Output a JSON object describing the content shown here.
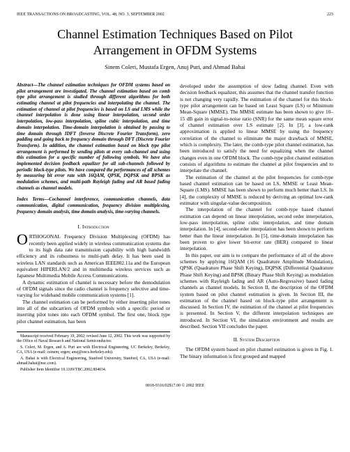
{
  "header": {
    "journal": "IEEE TRANSACTIONS ON BROADCASTING, VOL. 48, NO. 3, SEPTEMBER 2002",
    "page_number": "223"
  },
  "title": {
    "line1": "Channel Estimation Techniques Based on Pilot",
    "line2": "Arrangement in OFDM Systems"
  },
  "authors": "Sinem Coleri, Mustafa Ergen, Anuj Puri, and Ahmad Bahai",
  "abstract": {
    "label": "Abstract—",
    "text": "The channel estimation techniques for OFDM systems based on pilot arrangement are investigated. The channel estimation based on comb type pilot arrangement is studied through different algorithms for both estimating channel at pilot frequencies and interpolating the channel. The estimation of channel at pilot frequencies is based on LS and LMS while the channel interpolation is done using linear interpolation, second order interpolation, low-pass interpolation, spline cubic interpolation, and time domain interpolation. Time-domain interpolation is obtained by passing to time domain through IDFT (Inverse Discrete Fourier Transform), zero padding and going back to frequency domain through DFT (Discrete Fourier Transform). In addition, the channel estimation based on block type pilot arrangement is performed by sending pilots at every sub-channel and using this estimation for a specific number of following symbols. We have also implemented decision feedback equalizer for all sub-channels followed by periodic block-type pilots. We have compared the performances of all schemes by measuring bit error rate with 16QAM, QPSK, DQPSK and BPSK as modulation schemes, and multi-path Rayleigh fading and AR based fading channels as channel models."
  },
  "index_terms": {
    "label": "Index Terms—",
    "text": "Cochannel interference, communication channels, data communication, digital communication, frequency division multiplexing, frequency domain analysis, time domain analysis, time-varying channels."
  },
  "sections": {
    "intro_heading_roman": "I.  ",
    "intro_heading_text": "Introduction",
    "intro_dropcap": "O",
    "intro_first_rest": "RTHOGONAL Frequency Division Multiplexing (OFDM) has recently been applied widely in wireless communication systems due to its high data rate transmission capability with high bandwidth efficiency and its robustness to multi-path delay. It has been used in wireless LAN standards such as American IEEE802.11a and the European equivalent HIPERLAN/2 and in multimedia wireless services such as Japanese Multimedia Mobile Access Communications.",
    "intro_p2": "A dynamic estimation of channel is necessary before the demodulation of OFDM signals since the radio channel is frequency selective and time-varying for wideband mobile communication systems [1].",
    "intro_p3": "The channel estimation can be performed by either inserting pilot tones into all of the subcarriers of OFDM symbols with a specific period or inserting pilot tones into each OFDM symbol. The first one, block type pilot channel estimation, has been",
    "col2_p1": "developed under the assumption of slow fading channel. Even with decision feedback equalizer, this assumes that the channel transfer function is not changing very rapidly. The estimation of the channel for this block-type pilot arrangement can be based on Least Square (LS) or Minimum Mean-Square (MMSE). The MMSE estimate has been shown to give 10–15 dB gain in signal-to-noise ratio (SNR) for the same mean square error of channel estimation over LS estimate [2]. In [3], a low-rank approximation is applied to linear MMSE by using the frequency correlation of the channel to eliminate the major drawback of MMSE, which is complexity. The later, the comb-type pilot channel estimation, has been introduced to satisfy the need for equalizing when the channel changes even in one OFDM block. The comb-type pilot channel estimation consists of algorithms to estimate the channel at pilot frequencies and to interpolate the channel.",
    "col2_p2": "The estimation of the channel at the pilot frequencies for comb-type based channel estimation can be based on LS, MMSE or Least Mean-Square (LMS). MMSE has been shown to perform much better than LS. In [4], the complexity of MMSE is reduced by deriving an optimal low-rank estimator with singular-value decomposition.",
    "col2_p3": "The interpolation of the channel for comb-type based channel estimation can depend on linear interpolation, second order interpolation, low-pass interpolation, spline cubic interpolation, and time domain interpolation. In [4], second-order interpolation has been shown to perform better than the linear interpolation. In [5], time-domain interpolation has been proven to give lower bit-error rate (BER) compared to linear interpolation.",
    "col2_p4": "In this paper, our aim is to compare the performance of all of the above schemes by applying 16QAM (16 Quadrature Amplitude Modulation), QPSK (Quadrature Phase Shift Keying), DQPSK (Differential Quadrature Phase Shift Keying) and BPSK (Binary Phase Shift Keying) as modulation schemes with Rayleigh fading and AR (Auto-Regressive) based fading channels as channel models. In Section II, the description of the OFDM system based on pilot channel estimation is given. In Section III, the estimation of the channel based on block-type pilot arrangement is discussed. In Section IV, the estimation of the channel at pilot frequencies is presented. In Section V, the different interpolation techniques are introduced. In Section VI, the simulation environment and results are described. Section VII concludes the paper.",
    "sys_heading_roman": "II.  ",
    "sys_heading_text": "System Description",
    "sys_p1": "The OFDM system based on pilot channel estimation is given in Fig. 1. The binary information is first grouped and mapped"
  },
  "footnotes": {
    "p1": "Manuscript received February 19, 2002; revised June 12, 2002. This work was supported by the Office of Naval Research and National Semiconductor.",
    "p2": "S. Coleri, M. Ergen, and A. Puri are with Electrical Engineering, UC Berkeley, Berkeley, CA, USA (e-mail: csinem; ergen; anuj@eecs.berkeley.edu).",
    "p3": "A. Bahai is with Electrical Engineering, Stanford University, Stanford, CA, USA (e-mail: ahmad.bahai@nsc.com).",
    "p4": "Publisher Item Identifier 10.1109/TBC.2002.804034."
  },
  "footer": "0018-9316/02$17.00 © 2002 IEEE"
}
